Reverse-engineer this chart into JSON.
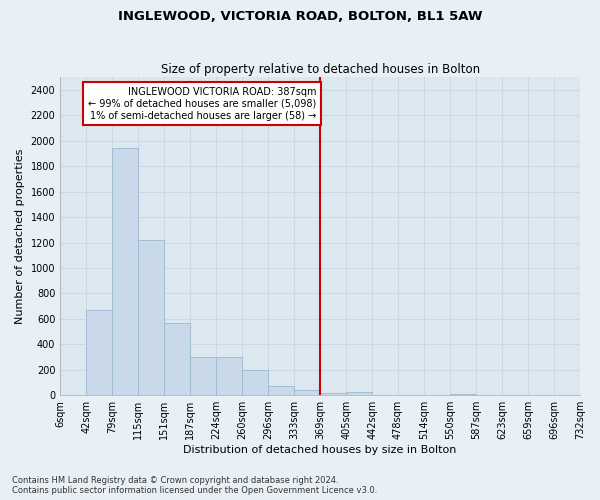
{
  "title": "INGLEWOOD, VICTORIA ROAD, BOLTON, BL1 5AW",
  "subtitle": "Size of property relative to detached houses in Bolton",
  "xlabel": "Distribution of detached houses by size in Bolton",
  "ylabel": "Number of detached properties",
  "footnote1": "Contains HM Land Registry data © Crown copyright and database right 2024.",
  "footnote2": "Contains public sector information licensed under the Open Government Licence v3.0.",
  "annotation_title": "INGLEWOOD VICTORIA ROAD: 387sqm",
  "annotation_line1": "← 99% of detached houses are smaller (5,098)",
  "annotation_line2": "1% of semi-detached houses are larger (58) →",
  "bar_heights": [
    5,
    670,
    1940,
    1220,
    570,
    300,
    300,
    200,
    70,
    40,
    20,
    25,
    5,
    5,
    5,
    10,
    5,
    5,
    5,
    5
  ],
  "bar_color": "#c9d9ea",
  "bar_edge_color": "#9ab8d0",
  "vline_color": "#cc0000",
  "vline_bin_index": 10,
  "annotation_box_color": "#cc0000",
  "annotation_box_bg": "#ffffff",
  "grid_color": "#c8d4e0",
  "bg_color": "#dce8f0",
  "fig_bg_color": "#e8f0f6",
  "ylim": [
    0,
    2500
  ],
  "yticks": [
    0,
    200,
    400,
    600,
    800,
    1000,
    1200,
    1400,
    1600,
    1800,
    2000,
    2200,
    2400
  ],
  "xtick_labels": [
    "6sqm",
    "42sqm",
    "79sqm",
    "115sqm",
    "151sqm",
    "187sqm",
    "224sqm",
    "260sqm",
    "296sqm",
    "333sqm",
    "369sqm",
    "405sqm",
    "442sqm",
    "478sqm",
    "514sqm",
    "550sqm",
    "587sqm",
    "623sqm",
    "659sqm",
    "696sqm",
    "732sqm"
  ],
  "num_bars": 20,
  "title_fontsize": 9.5,
  "subtitle_fontsize": 8.5,
  "label_fontsize": 8,
  "tick_fontsize": 7,
  "footnote_fontsize": 6
}
